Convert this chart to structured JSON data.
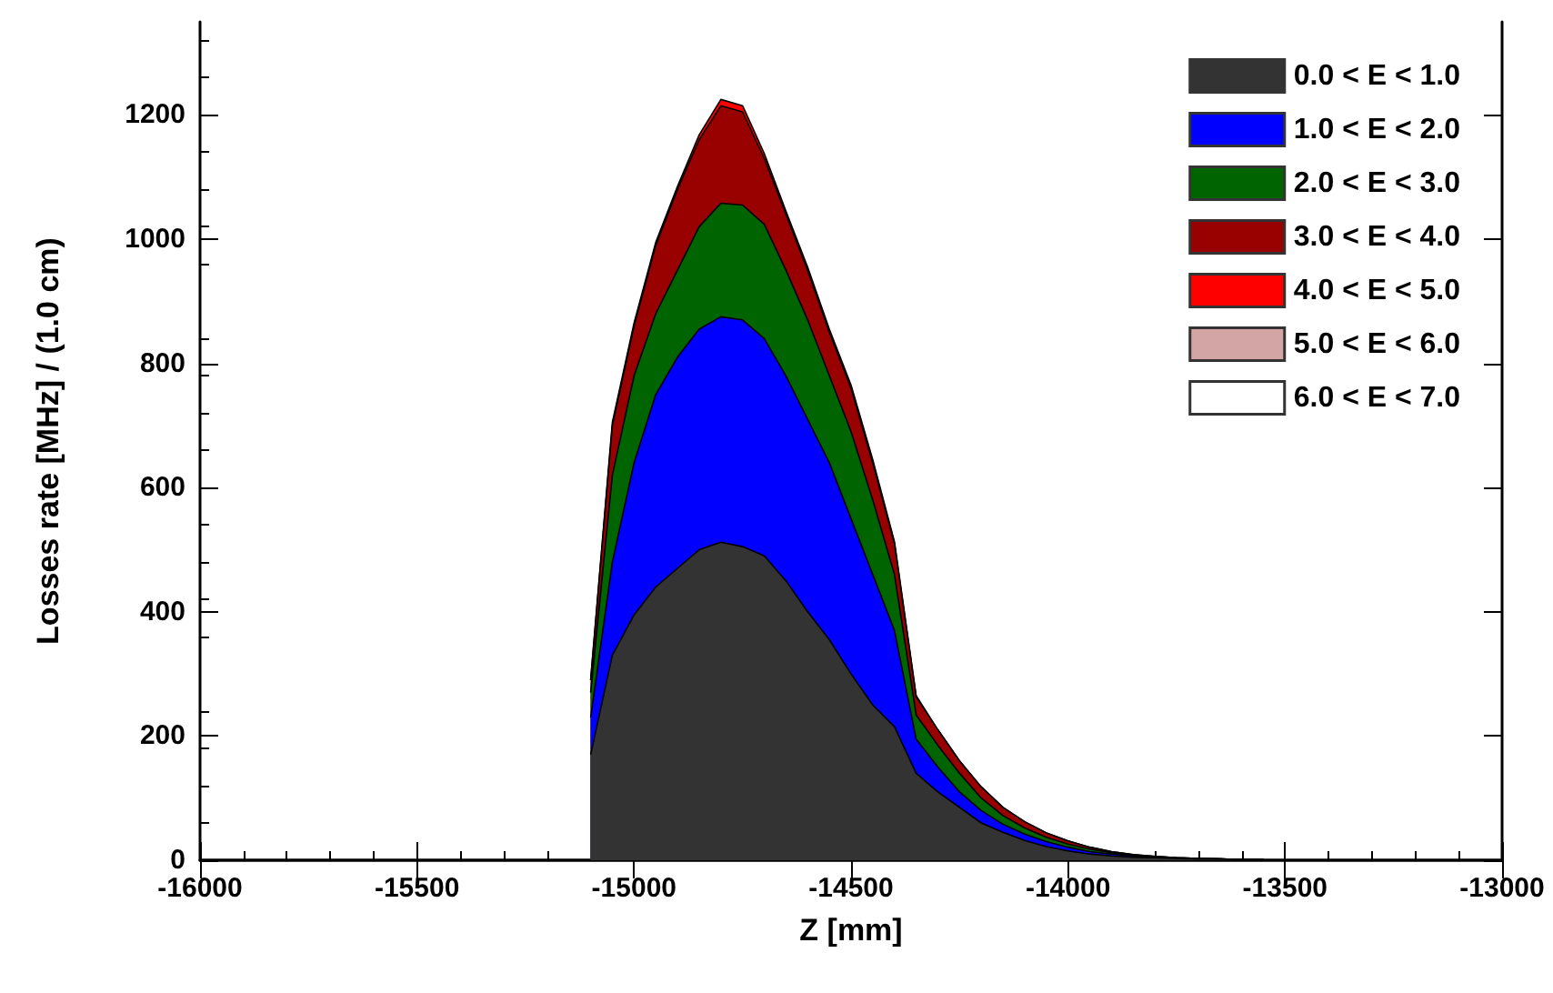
{
  "chart_data": {
    "type": "area",
    "stacked": true,
    "xlabel": "Z [mm]",
    "ylabel": "Losses rate [MHz] / (1.0 cm)",
    "x": [
      -15100,
      -15050,
      -15000,
      -14950,
      -14900,
      -14850,
      -14800,
      -14750,
      -14700,
      -14650,
      -14600,
      -14550,
      -14500,
      -14450,
      -14400,
      -14350,
      -14300,
      -14250,
      -14200,
      -14150,
      -14100,
      -14050,
      -14000,
      -13950,
      -13900,
      -13850,
      -13800,
      -13750,
      -13700,
      -13650,
      -13600,
      -13550
    ],
    "series": [
      {
        "name": "0.0 < E < 1.0",
        "color": "#333333",
        "values": [
          170,
          330,
          395,
          440,
          470,
          500,
          512,
          505,
          490,
          450,
          400,
          355,
          300,
          250,
          215,
          140,
          110,
          85,
          60,
          45,
          32,
          22,
          15,
          10,
          7,
          5,
          4,
          3,
          2,
          2,
          1,
          1
        ]
      },
      {
        "name": "1.0 < E < 2.0",
        "color": "#0000ff",
        "values": [
          60,
          150,
          245,
          310,
          340,
          355,
          363,
          365,
          350,
          330,
          310,
          285,
          250,
          210,
          155,
          55,
          40,
          25,
          20,
          13,
          10,
          8,
          6,
          4,
          3,
          2,
          1,
          1,
          1,
          0,
          0,
          0
        ]
      },
      {
        "name": "2.0 < E < 3.0",
        "color": "#006400",
        "values": [
          40,
          140,
          140,
          130,
          140,
          165,
          183,
          185,
          184,
          170,
          160,
          140,
          140,
          120,
          90,
          39,
          35,
          30,
          20,
          14,
          10,
          7,
          5,
          4,
          2,
          1,
          1,
          0,
          0,
          0,
          0,
          0
        ]
      },
      {
        "name": "3.0 < E < 4.0",
        "color": "#990000",
        "values": [
          20,
          80,
          80,
          110,
          130,
          140,
          157,
          150,
          106,
          90,
          80,
          70,
          70,
          60,
          50,
          29,
          25,
          20,
          18,
          13,
          10,
          7,
          5,
          3,
          2,
          1,
          0,
          0,
          0,
          0,
          0,
          0
        ]
      },
      {
        "name": "4.0 < E < 5.0",
        "color": "#ff0000",
        "values": [
          0,
          5,
          5,
          5,
          5,
          8,
          10,
          10,
          8,
          5,
          5,
          5,
          5,
          5,
          3,
          2,
          0,
          0,
          0,
          0,
          0,
          0,
          0,
          0,
          0,
          0,
          0,
          0,
          0,
          0,
          0,
          0
        ]
      },
      {
        "name": "5.0 < E < 6.0",
        "color": "#d4a5a5",
        "values": [
          null,
          null,
          null,
          null,
          null,
          null,
          null,
          null,
          null,
          null,
          null,
          null,
          null,
          null,
          null,
          null,
          null,
          null,
          null,
          null,
          null,
          null,
          null,
          null,
          null,
          null,
          null,
          null,
          null,
          null,
          null,
          null
        ]
      },
      {
        "name": "6.0 < E < 7.0",
        "color": "#ffffff",
        "values": [
          null,
          null,
          null,
          null,
          null,
          null,
          null,
          null,
          null,
          null,
          null,
          null,
          null,
          null,
          null,
          null,
          null,
          null,
          null,
          null,
          null,
          null,
          null,
          null,
          null,
          null,
          null,
          null,
          null,
          null,
          null,
          null
        ]
      }
    ],
    "xlim": [
      -16000,
      -13000
    ],
    "xticks": [
      -16000,
      -15500,
      -15000,
      -14500,
      -14000,
      -13500,
      -13000
    ],
    "ylim": [
      0,
      1350
    ],
    "yticks": [
      0,
      200,
      400,
      600,
      800,
      1000,
      1200
    ],
    "grid": false,
    "legend": "top right"
  }
}
